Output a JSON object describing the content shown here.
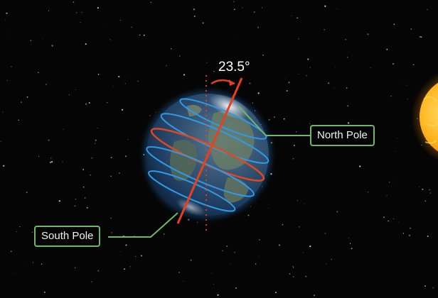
{
  "diagram": {
    "tilt_angle": "23.5°",
    "north_pole_label": "North Pole",
    "south_pole_label": "South Pole"
  },
  "colors": {
    "background": "#050505",
    "callout_border": "#6fb86a",
    "axis": "#e8401e",
    "equator": "#e2471f",
    "latitude_lines": "#2f9be6",
    "ocean": "#1c3a5e",
    "sun": "#f7a212"
  },
  "icons": [
    "earth-globe",
    "sun",
    "tilt-arrow"
  ]
}
